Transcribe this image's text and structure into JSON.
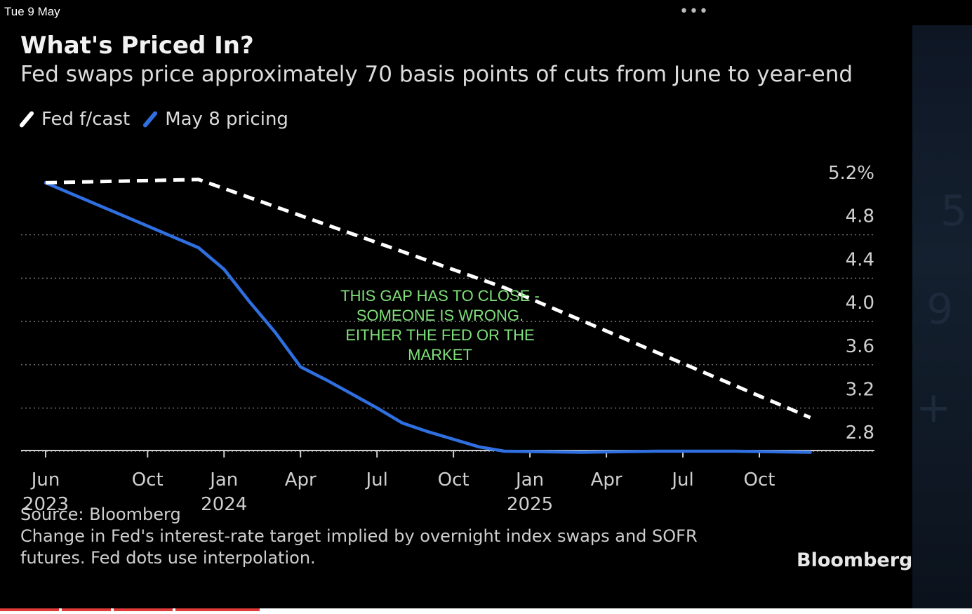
{
  "status": {
    "date": "Tue 9 May",
    "more": "•••"
  },
  "chart_data": {
    "type": "line",
    "title": "What's Priced In?",
    "subtitle": "Fed swaps price approximately 70 basis points of cuts from June to year-end",
    "legend": [
      {
        "name": "Fed f/cast",
        "color": "#ffffff",
        "style": "dashed"
      },
      {
        "name": "May 8 pricing",
        "color": "#2f6fe0",
        "style": "solid"
      }
    ],
    "yticks": [
      "5.2%",
      "4.8",
      "4.4",
      "4.0",
      "3.6",
      "3.2",
      "2.8"
    ],
    "ytick_values": [
      5.2,
      4.8,
      4.4,
      4.0,
      3.6,
      3.2,
      2.8
    ],
    "ylim": [
      2.6,
      5.2
    ],
    "xticks": [
      {
        "label": "Jun",
        "year": "2023",
        "date": "2023-06"
      },
      {
        "label": "Oct",
        "year": "",
        "date": "2023-10"
      },
      {
        "label": "Jan",
        "year": "2024",
        "date": "2024-01"
      },
      {
        "label": "Apr",
        "year": "",
        "date": "2024-04"
      },
      {
        "label": "Jul",
        "year": "",
        "date": "2024-07"
      },
      {
        "label": "Oct",
        "year": "",
        "date": "2024-10"
      },
      {
        "label": "Jan",
        "year": "2025",
        "date": "2025-01"
      },
      {
        "label": "Apr",
        "year": "",
        "date": "2025-04"
      },
      {
        "label": "Jul",
        "year": "",
        "date": "2025-07"
      },
      {
        "label": "Oct",
        "year": "",
        "date": "2025-10"
      }
    ],
    "series": [
      {
        "name": "Fed f/cast",
        "x": [
          "2023-06",
          "2023-12",
          "2024-12",
          "2025-12"
        ],
        "y": [
          5.1,
          5.13,
          4.13,
          2.93
        ]
      },
      {
        "name": "May 8 pricing",
        "x": [
          "2023-06",
          "2023-07",
          "2023-08",
          "2023-09",
          "2023-10",
          "2023-11",
          "2023-12",
          "2024-01",
          "2024-02",
          "2024-03",
          "2024-04",
          "2024-05",
          "2024-06",
          "2024-07",
          "2024-08",
          "2024-09",
          "2024-10",
          "2024-11",
          "2024-12",
          "2025-03",
          "2025-06",
          "2025-09",
          "2025-12"
        ],
        "y": [
          5.1,
          5.0,
          4.9,
          4.8,
          4.7,
          4.6,
          4.5,
          4.3,
          4.0,
          3.72,
          3.4,
          3.28,
          3.15,
          3.02,
          2.88,
          2.8,
          2.73,
          2.66,
          2.62,
          2.61,
          2.62,
          2.62,
          2.61
        ]
      }
    ],
    "annotation": "THIS GAP HAS TO CLOSE - SOMEONE IS WRONG.  EITHER THE FED OR THE MARKET",
    "grid": true,
    "legend_position": "top-left"
  },
  "footer": {
    "source": "Source: Bloomberg",
    "note_line1": "Change in Fed's interest-rate target implied by overnight index swaps and SOFR",
    "note_line2": "futures. Fed dots use interpolation.",
    "brand": "Bloomberg"
  }
}
